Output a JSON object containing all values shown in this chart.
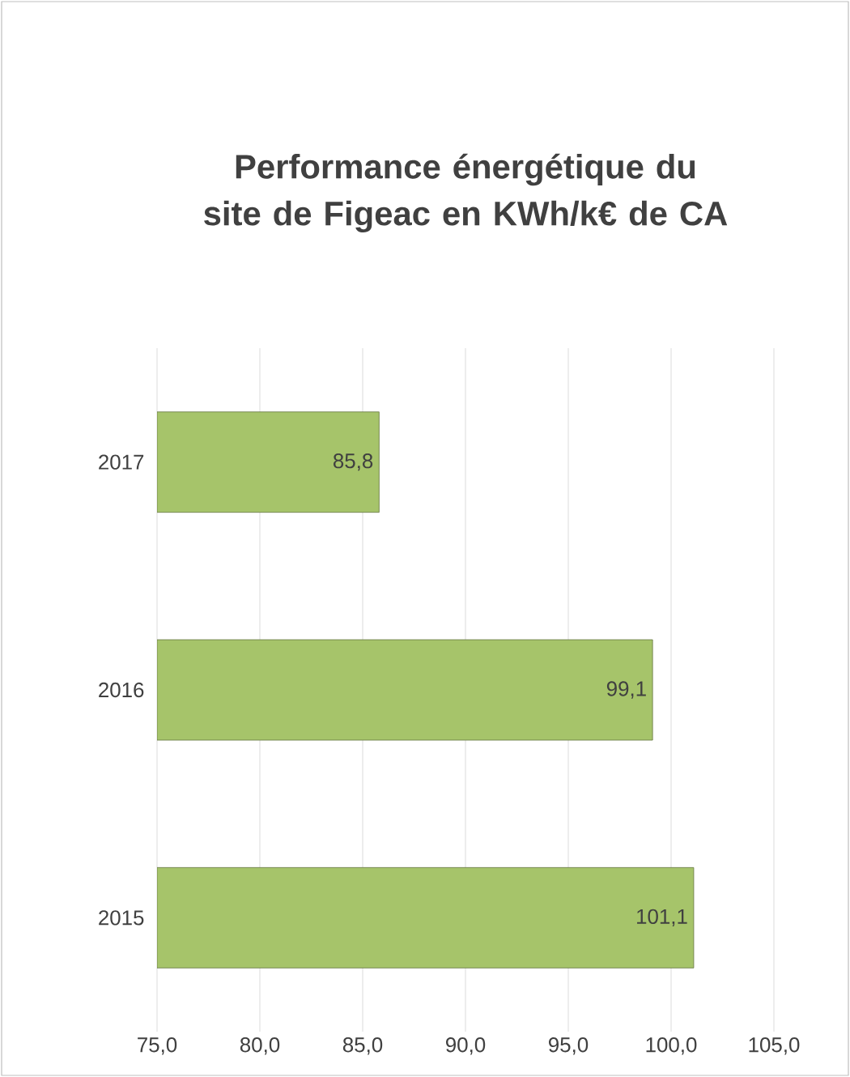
{
  "chart_data": {
    "type": "bar",
    "orientation": "horizontal",
    "title": "Performance énergétique du site de Figeac en KWh/k€ de CA",
    "categories": [
      "2017",
      "2016",
      "2015"
    ],
    "values": [
      85.8,
      99.1,
      101.1
    ],
    "value_labels": [
      "85,8",
      "99,1",
      "101,1"
    ],
    "color": "#a6c46a",
    "xlim": [
      75,
      105
    ],
    "xticks": [
      {
        "value": 75,
        "label": "75,0"
      },
      {
        "value": 80,
        "label": "80,0"
      },
      {
        "value": 85,
        "label": "85,0"
      },
      {
        "value": 90,
        "label": "90,0"
      },
      {
        "value": 95,
        "label": "95,0"
      },
      {
        "value": 100,
        "label": "100,0"
      },
      {
        "value": 105,
        "label": "105,0"
      }
    ],
    "grid": "x"
  }
}
